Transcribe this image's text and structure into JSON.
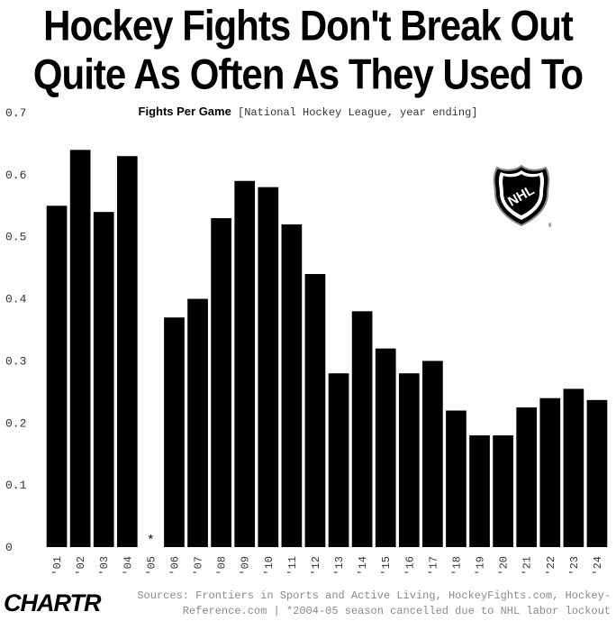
{
  "header": {
    "title_line1": "Hockey Fights Don't Break Out",
    "title_line2": "Quite As Often As They Used To",
    "subtitle_bold": "Fights Per Game",
    "subtitle_rest": "[National Hockey League, year ending]"
  },
  "logo": {
    "icon": "nhl-shield-icon",
    "text": "NHL",
    "mark": "®"
  },
  "footer": {
    "brand": "CHARTR",
    "source_line1": "Sources: Frontiers in Sports and Active Living, HockeyFights.com, Hockey-",
    "source_line2": "Reference.com | *2004-05 season cancelled due to NHL labor lockout"
  },
  "chart_data": {
    "type": "bar",
    "title": "Fights Per Game",
    "categories": [
      "'01",
      "'02",
      "'03",
      "'04",
      "'05",
      "'06",
      "'07",
      "'08",
      "'09",
      "'10",
      "'11",
      "'12",
      "'13",
      "'14",
      "'15",
      "'16",
      "'17",
      "'18",
      "'19",
      "'20",
      "'21",
      "'22",
      "'23",
      "'24"
    ],
    "values": [
      0.55,
      0.64,
      0.54,
      0.63,
      null,
      0.37,
      0.4,
      0.53,
      0.59,
      0.58,
      0.52,
      0.44,
      0.28,
      0.38,
      0.32,
      0.28,
      0.3,
      0.22,
      0.18,
      0.18,
      0.225,
      0.24,
      0.255,
      0.237
    ],
    "missing_marker": "*",
    "yticks": [
      "0.7",
      "0.6",
      "0.5",
      "0.4",
      "0.3",
      "0.2",
      "0.1",
      "0"
    ],
    "ylim": [
      0,
      0.7
    ],
    "bar_color": "#000000",
    "grid": false
  }
}
